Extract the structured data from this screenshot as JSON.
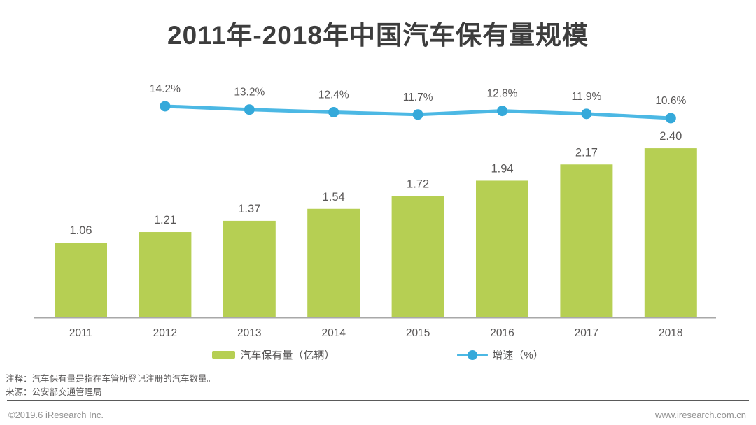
{
  "title": "2011年-2018年中国汽车保有量规模",
  "chart_data": {
    "type": "combo",
    "title": "2011年-2018年中国汽车保有量规模",
    "categories": [
      "2011",
      "2012",
      "2013",
      "2014",
      "2015",
      "2016",
      "2017",
      "2018"
    ],
    "series": [
      {
        "name": "汽车保有量（亿辆）",
        "type": "bar",
        "color": "#b6cf53",
        "values": [
          1.06,
          1.21,
          1.37,
          1.54,
          1.72,
          1.94,
          2.17,
          2.4
        ]
      },
      {
        "name": "增速（%）",
        "type": "line",
        "color": "#4cb8e4",
        "marker_color": "#35a9da",
        "values": [
          null,
          14.2,
          13.2,
          12.4,
          11.7,
          12.8,
          11.9,
          10.6
        ]
      }
    ],
    "xlabel": "",
    "ylabel": "",
    "grid": false,
    "value_labels": true,
    "legend_position": "bottom",
    "label_color": "#595757",
    "axis_line_color": "#a8a8a8"
  },
  "notes": {
    "annotation": "注释：汽车保有量是指在车管所登记注册的汽车数量。",
    "source": "来源：公安部交通管理局"
  },
  "footer": {
    "left": "©2019.6 iResearch Inc.",
    "right": "www.iresearch.com.cn"
  }
}
